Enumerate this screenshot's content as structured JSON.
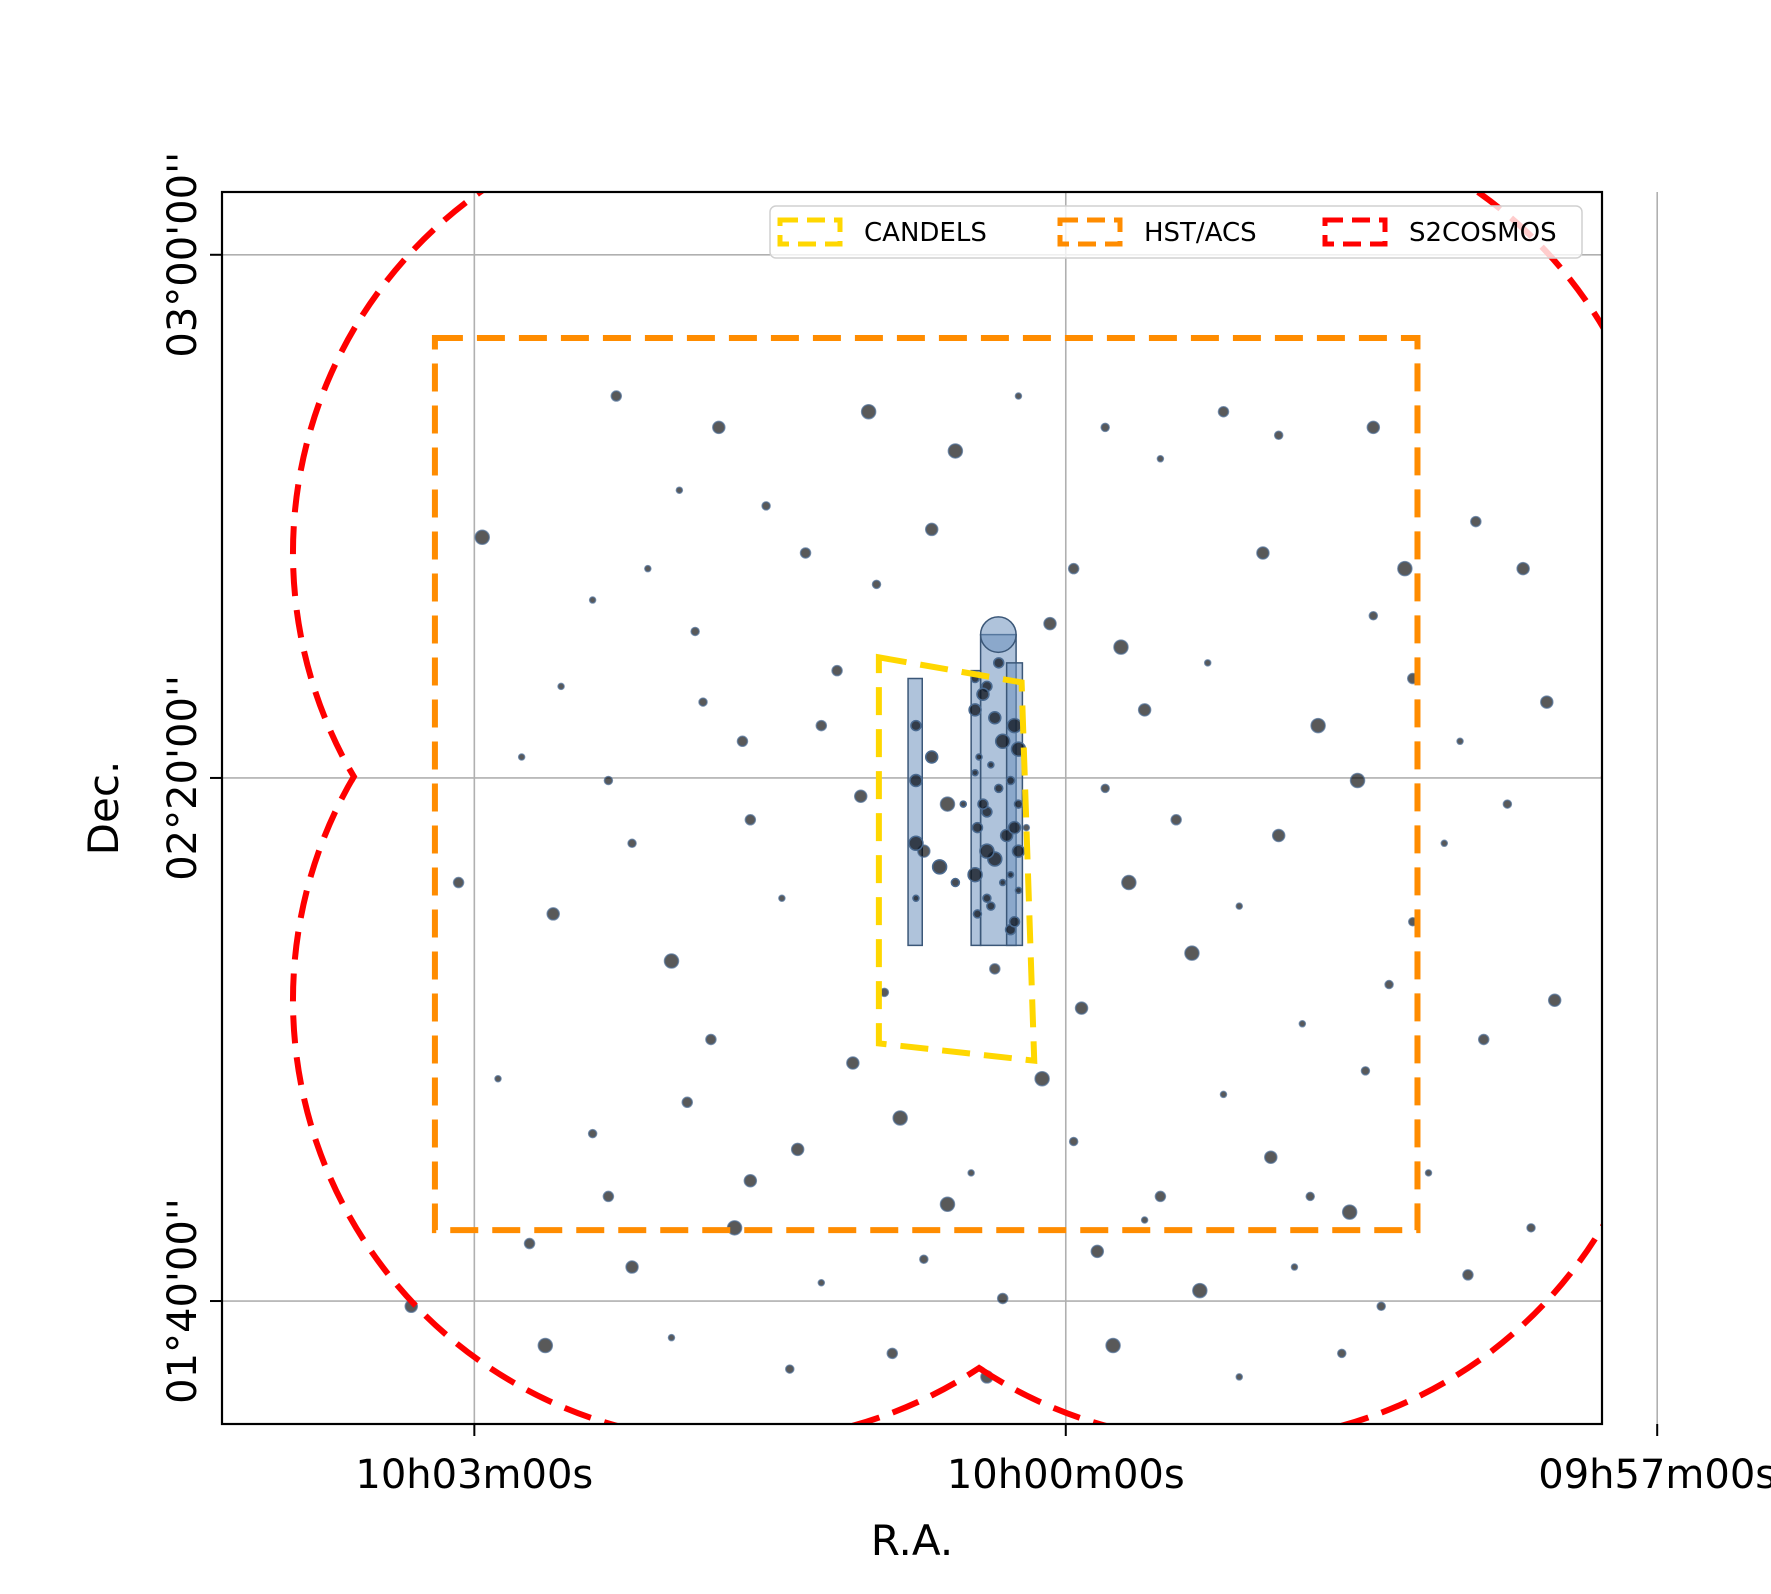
{
  "chart_data": {
    "type": "scatter",
    "xlabel": "R.A.",
    "ylabel": "Dec.",
    "x_unit": "degrees (R.A.)",
    "y_unit": "degrees (Dec.)",
    "xlim": [
      151.07,
      149.32
    ],
    "ylim": [
      1.51,
      3.08
    ],
    "x_ticks": [
      {
        "value": 150.75,
        "label": "10h03m00s"
      },
      {
        "value": 150.0,
        "label": "10h00m00s"
      },
      {
        "value": 149.25,
        "label": "09h57m00s"
      }
    ],
    "y_ticks": [
      {
        "value": 1.6667,
        "label": "01°40'00''"
      },
      {
        "value": 2.3333,
        "label": "02°20'00''"
      },
      {
        "value": 3.0,
        "label": "03°00'00''"
      }
    ],
    "grid": true,
    "legend_position": "top-right",
    "legend": [
      {
        "label": "CANDELS",
        "color": "#FFD700",
        "style": "dashed"
      },
      {
        "label": "HST/ACS",
        "color": "#FF8C00",
        "style": "dashed"
      },
      {
        "label": "S2COSMOS",
        "color": "#FF0000",
        "style": "dashed"
      }
    ],
    "regions": [
      {
        "name": "CANDELS",
        "color": "#FFD700",
        "style": "dashed",
        "vertices": [
          [
            150.237,
            2.487
          ],
          [
            150.056,
            2.455
          ],
          [
            150.04,
            1.973
          ],
          [
            150.237,
            1.995
          ]
        ]
      },
      {
        "name": "HST/ACS",
        "color": "#FF8C00",
        "style": "dashed",
        "vertices": [
          [
            150.8,
            2.894
          ],
          [
            149.554,
            2.894
          ],
          [
            149.554,
            1.757
          ],
          [
            150.8,
            1.757
          ]
        ]
      },
      {
        "name": "S2COSMOS",
        "color": "#FF0000",
        "style": "dashed",
        "lobes": [
          {
            "center": [
              150.42,
              2.62
            ],
            "radius": 0.56
          },
          {
            "center": [
              149.8,
              2.62
            ],
            "radius": 0.56
          },
          {
            "center": [
              150.42,
              2.05
            ],
            "radius": 0.56
          },
          {
            "center": [
              149.8,
              2.05
            ],
            "radius": 0.56
          }
        ]
      }
    ],
    "coverage_blobs": [
      {
        "color": "#6E91BE",
        "vertices": [
          [
            150.108,
            2.516
          ],
          [
            150.063,
            2.516
          ],
          [
            150.063,
            2.12
          ],
          [
            150.108,
            2.12
          ]
        ],
        "cap_top": true
      },
      {
        "color": "#6E91BE",
        "vertices": [
          [
            150.12,
            2.47
          ],
          [
            150.108,
            2.47
          ],
          [
            150.108,
            2.12
          ],
          [
            150.12,
            2.12
          ]
        ]
      },
      {
        "color": "#6E91BE",
        "vertices": [
          [
            150.075,
            2.48
          ],
          [
            150.055,
            2.48
          ],
          [
            150.055,
            2.12
          ],
          [
            150.075,
            2.12
          ]
        ]
      },
      {
        "color": "#6E91BE",
        "vertices": [
          [
            150.2,
            2.46
          ],
          [
            150.182,
            2.46
          ],
          [
            150.182,
            2.12
          ],
          [
            150.2,
            2.12
          ]
        ]
      }
    ],
    "series": [
      {
        "type": "scatter",
        "marker_color": "#000000",
        "points": [
          [
            150.49,
            2.7
          ],
          [
            150.38,
            2.68
          ],
          [
            150.33,
            2.62
          ],
          [
            150.17,
            2.65
          ],
          [
            150.14,
            2.75
          ],
          [
            149.88,
            2.74
          ],
          [
            149.73,
            2.77
          ],
          [
            149.48,
            2.66
          ],
          [
            149.42,
            2.6
          ],
          [
            149.25,
            2.5
          ],
          [
            150.6,
            2.56
          ],
          [
            150.47,
            2.52
          ],
          [
            150.29,
            2.47
          ],
          [
            150.02,
            2.53
          ],
          [
            149.93,
            2.5
          ],
          [
            149.82,
            2.48
          ],
          [
            149.61,
            2.54
          ],
          [
            149.56,
            2.46
          ],
          [
            149.39,
            2.43
          ],
          [
            149.28,
            2.42
          ],
          [
            150.69,
            2.36
          ],
          [
            150.58,
            2.33
          ],
          [
            150.41,
            2.38
          ],
          [
            150.26,
            2.31
          ],
          [
            150.15,
            2.3
          ],
          [
            150.05,
            2.27
          ],
          [
            149.95,
            2.32
          ],
          [
            149.86,
            2.28
          ],
          [
            149.73,
            2.26
          ],
          [
            149.63,
            2.33
          ],
          [
            149.52,
            2.25
          ],
          [
            149.44,
            2.3
          ],
          [
            150.77,
            2.2
          ],
          [
            150.65,
            2.16
          ],
          [
            150.5,
            2.1
          ],
          [
            150.36,
            2.18
          ],
          [
            150.23,
            2.06
          ],
          [
            150.09,
            2.09
          ],
          [
            149.98,
            2.04
          ],
          [
            149.84,
            2.11
          ],
          [
            149.7,
            2.02
          ],
          [
            149.59,
            2.07
          ],
          [
            149.47,
            2.0
          ],
          [
            149.38,
            2.05
          ],
          [
            149.3,
            1.98
          ],
          [
            150.72,
            1.95
          ],
          [
            150.6,
            1.88
          ],
          [
            150.48,
            1.92
          ],
          [
            150.34,
            1.86
          ],
          [
            150.21,
            1.9
          ],
          [
            150.12,
            1.83
          ],
          [
            149.99,
            1.87
          ],
          [
            149.88,
            1.8
          ],
          [
            149.74,
            1.85
          ],
          [
            149.64,
            1.78
          ],
          [
            149.54,
            1.83
          ],
          [
            149.41,
            1.76
          ],
          [
            150.68,
            1.74
          ],
          [
            150.55,
            1.71
          ],
          [
            150.42,
            1.76
          ],
          [
            150.31,
            1.69
          ],
          [
            150.18,
            1.72
          ],
          [
            150.08,
            1.67
          ],
          [
            149.96,
            1.73
          ],
          [
            149.83,
            1.68
          ],
          [
            149.71,
            1.71
          ],
          [
            149.6,
            1.66
          ],
          [
            149.49,
            1.7
          ],
          [
            150.83,
            1.66
          ],
          [
            150.66,
            1.61
          ],
          [
            150.5,
            1.62
          ],
          [
            150.35,
            1.58
          ],
          [
            150.22,
            1.6
          ],
          [
            150.1,
            1.57
          ],
          [
            149.94,
            1.61
          ],
          [
            149.78,
            1.57
          ],
          [
            149.65,
            1.6
          ],
          [
            150.57,
            2.82
          ],
          [
            150.44,
            2.78
          ],
          [
            150.25,
            2.8
          ],
          [
            150.06,
            2.82
          ],
          [
            149.95,
            2.78
          ],
          [
            149.8,
            2.8
          ],
          [
            149.61,
            2.78
          ],
          [
            150.74,
            2.64
          ],
          [
            150.53,
            2.6
          ],
          [
            150.24,
            2.58
          ],
          [
            149.99,
            2.6
          ],
          [
            149.75,
            2.62
          ],
          [
            149.57,
            2.6
          ],
          [
            150.64,
            2.45
          ],
          [
            150.46,
            2.43
          ],
          [
            150.31,
            2.4
          ],
          [
            149.9,
            2.42
          ],
          [
            149.68,
            2.4
          ],
          [
            149.5,
            2.38
          ],
          [
            150.55,
            2.25
          ],
          [
            150.4,
            2.28
          ],
          [
            150.18,
            2.24
          ],
          [
            149.92,
            2.2
          ],
          [
            149.78,
            2.17
          ],
          [
            149.56,
            2.15
          ],
          [
            150.45,
            2.0
          ],
          [
            150.27,
            1.97
          ],
          [
            150.03,
            1.95
          ],
          [
            149.8,
            1.93
          ],
          [
            149.62,
            1.96
          ],
          [
            150.58,
            1.8
          ],
          [
            150.4,
            1.82
          ],
          [
            150.15,
            1.79
          ],
          [
            149.9,
            1.77
          ],
          [
            149.69,
            1.8
          ]
        ]
      }
    ],
    "cluster_points": [
      [
        150.1,
        2.45
      ],
      [
        150.09,
        2.41
      ],
      [
        150.08,
        2.38
      ],
      [
        150.095,
        2.35
      ],
      [
        150.085,
        2.32
      ],
      [
        150.1,
        2.29
      ],
      [
        150.075,
        2.26
      ],
      [
        150.09,
        2.23
      ],
      [
        150.08,
        2.2
      ],
      [
        150.095,
        2.17
      ],
      [
        150.07,
        2.14
      ],
      [
        150.105,
        2.44
      ],
      [
        150.065,
        2.4
      ],
      [
        150.11,
        2.36
      ],
      [
        150.07,
        2.33
      ],
      [
        150.105,
        2.3
      ],
      [
        150.065,
        2.27
      ],
      [
        150.1,
        2.24
      ],
      [
        150.07,
        2.21
      ],
      [
        150.1,
        2.18
      ],
      [
        150.065,
        2.15
      ],
      [
        150.115,
        2.42
      ],
      [
        150.06,
        2.37
      ],
      [
        150.115,
        2.34
      ],
      [
        150.06,
        2.3
      ],
      [
        150.112,
        2.27
      ],
      [
        150.06,
        2.24
      ],
      [
        150.115,
        2.21
      ],
      [
        150.06,
        2.19
      ],
      [
        150.112,
        2.16
      ],
      [
        150.19,
        2.4
      ],
      [
        150.19,
        2.33
      ],
      [
        150.19,
        2.25
      ],
      [
        150.19,
        2.18
      ],
      [
        150.115,
        2.46
      ],
      [
        150.085,
        2.48
      ],
      [
        150.17,
        2.36
      ],
      [
        150.16,
        2.22
      ],
      [
        150.13,
        2.3
      ],
      [
        150.14,
        2.2
      ]
    ]
  }
}
